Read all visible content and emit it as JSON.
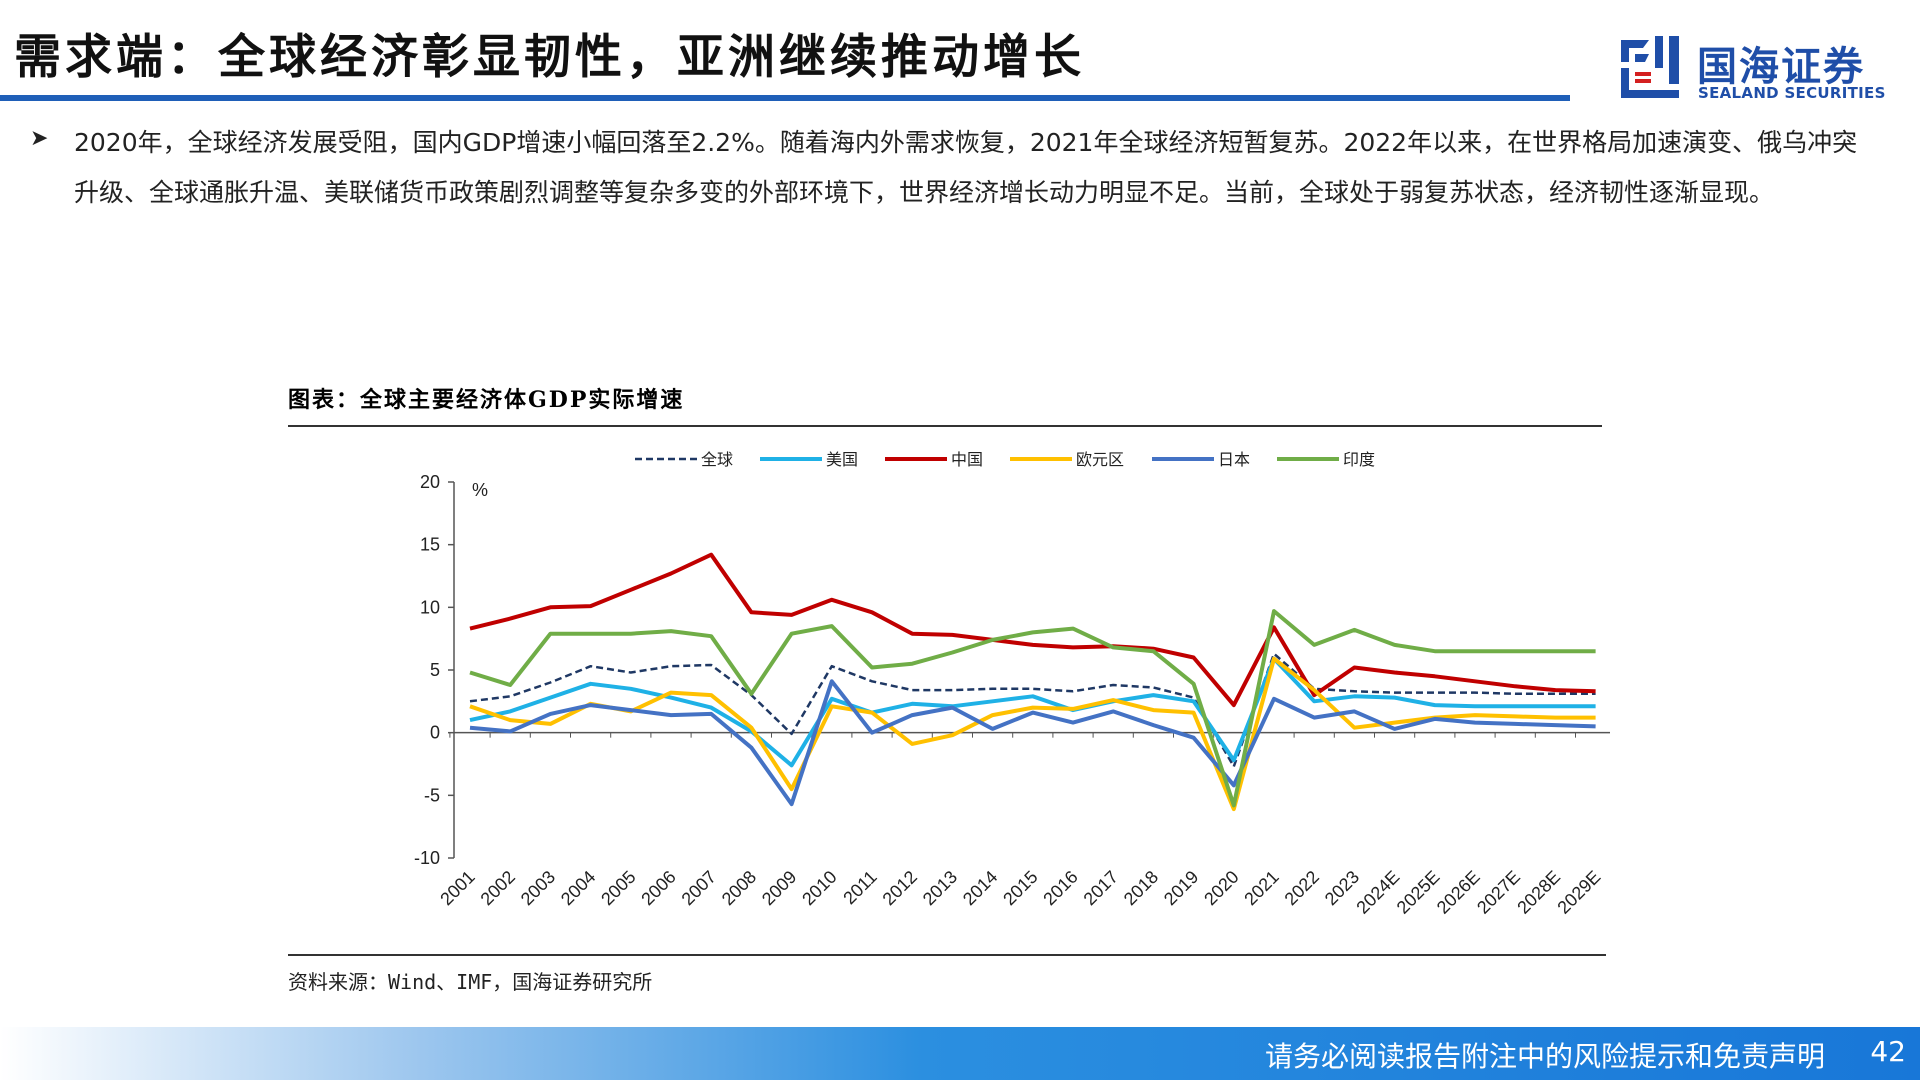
{
  "header": {
    "title": "需求端：全球经济彰显韧性，亚洲继续推动增长",
    "logo_cn": "国海证券",
    "logo_en": "SEALAND SECURITIES"
  },
  "body": {
    "paragraph": "2020年，全球经济发展受阻，国内GDP增速小幅回落至2.2%。随着海内外需求恢复，2021年全球经济短暂复苏。2022年以来，在世界格局加速演变、俄乌冲突升级、全球通胀升温、美联储货币政策剧烈调整等复杂多变的外部环境下，世界经济增长动力明显不足。当前，全球处于弱复苏状态，经济韧性逐渐显现。"
  },
  "figure": {
    "caption": "图表：全球主要经济体GDP实际增速",
    "source": "资料来源：Wind、IMF，国海证券研究所"
  },
  "footer": {
    "disclaimer": "请务必阅读报告附注中的风险提示和免责声明",
    "page": "42"
  },
  "colors": {
    "brand_blue": "#1f5fb8",
    "global": "#1f3864",
    "us": "#1fb1e6",
    "china": "#c00000",
    "euro": "#ffc000",
    "japan": "#4472c4",
    "india": "#70ad47"
  },
  "chart_data": {
    "type": "line",
    "ylabel": "%",
    "ylim": [
      -10,
      20
    ],
    "yticks": [
      20,
      15,
      10,
      5,
      0,
      -5,
      -10
    ],
    "legend_position": "top",
    "categories": [
      "2001",
      "2002",
      "2003",
      "2004",
      "2005",
      "2006",
      "2007",
      "2008",
      "2009",
      "2010",
      "2011",
      "2012",
      "2013",
      "2014",
      "2015",
      "2016",
      "2017",
      "2018",
      "2019",
      "2020",
      "2021",
      "2022",
      "2023",
      "2024E",
      "2025E",
      "2026E",
      "2027E",
      "2028E",
      "2029E"
    ],
    "series": [
      {
        "name": "全球",
        "color": "#1f3864",
        "dash": true,
        "values": [
          2.5,
          2.9,
          4.0,
          5.3,
          4.8,
          5.3,
          5.4,
          3.0,
          -0.1,
          5.3,
          4.1,
          3.4,
          3.4,
          3.5,
          3.5,
          3.3,
          3.8,
          3.6,
          2.8,
          -2.7,
          6.3,
          3.5,
          3.3,
          3.2,
          3.2,
          3.2,
          3.1,
          3.1,
          3.1
        ]
      },
      {
        "name": "美国",
        "color": "#1fb1e6",
        "dash": false,
        "values": [
          1.0,
          1.7,
          2.8,
          3.9,
          3.5,
          2.8,
          2.0,
          0.1,
          -2.6,
          2.7,
          1.6,
          2.3,
          2.1,
          2.5,
          2.9,
          1.8,
          2.5,
          3.0,
          2.5,
          -2.2,
          5.9,
          2.5,
          2.9,
          2.8,
          2.2,
          2.1,
          2.1,
          2.1,
          2.1
        ]
      },
      {
        "name": "中国",
        "color": "#c00000",
        "dash": false,
        "values": [
          8.3,
          9.1,
          10.0,
          10.1,
          11.4,
          12.7,
          14.2,
          9.6,
          9.4,
          10.6,
          9.6,
          7.9,
          7.8,
          7.4,
          7.0,
          6.8,
          6.9,
          6.7,
          6.0,
          2.2,
          8.4,
          3.0,
          5.2,
          4.8,
          4.5,
          4.1,
          3.7,
          3.4,
          3.3
        ]
      },
      {
        "name": "欧元区",
        "color": "#ffc000",
        "dash": false,
        "values": [
          2.1,
          1.0,
          0.7,
          2.3,
          1.7,
          3.2,
          3.0,
          0.4,
          -4.5,
          2.1,
          1.6,
          -0.9,
          -0.2,
          1.4,
          2.0,
          1.9,
          2.6,
          1.8,
          1.6,
          -6.1,
          5.9,
          3.4,
          0.4,
          0.8,
          1.2,
          1.4,
          1.3,
          1.2,
          1.2
        ]
      },
      {
        "name": "日本",
        "color": "#4472c4",
        "dash": false,
        "values": [
          0.4,
          0.1,
          1.5,
          2.2,
          1.8,
          1.4,
          1.5,
          -1.2,
          -5.7,
          4.1,
          0.0,
          1.4,
          2.0,
          0.3,
          1.6,
          0.8,
          1.7,
          0.6,
          -0.4,
          -4.2,
          2.7,
          1.2,
          1.7,
          0.3,
          1.1,
          0.8,
          0.7,
          0.6,
          0.5
        ]
      },
      {
        "name": "印度",
        "color": "#70ad47",
        "dash": false,
        "values": [
          4.8,
          3.8,
          7.9,
          7.9,
          7.9,
          8.1,
          7.7,
          3.1,
          7.9,
          8.5,
          5.2,
          5.5,
          6.4,
          7.4,
          8.0,
          8.3,
          6.8,
          6.5,
          3.9,
          -5.8,
          9.7,
          7.0,
          8.2,
          7.0,
          6.5,
          6.5,
          6.5,
          6.5,
          6.5
        ]
      }
    ]
  }
}
